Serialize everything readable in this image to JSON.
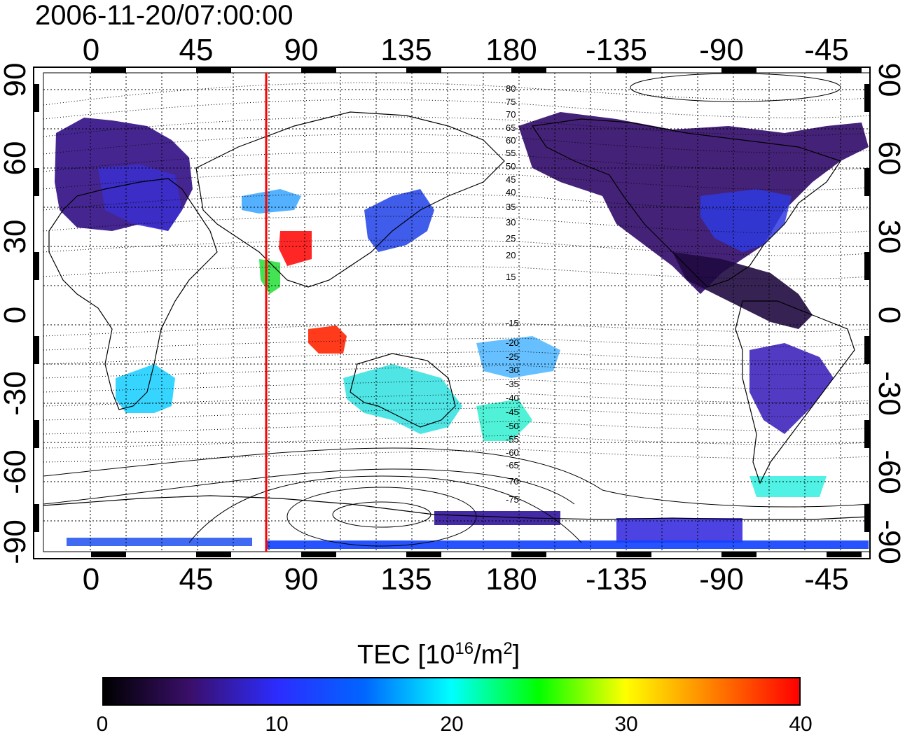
{
  "timestamp": "2006-11-20/07:00:00",
  "map": {
    "top_lon_labels": [
      "0",
      "45",
      "90",
      "135",
      "180",
      "-135",
      "-90",
      "-45"
    ],
    "bottom_lon_labels": [
      "0",
      "45",
      "90",
      "135",
      "180",
      "-135",
      "-90",
      "-45"
    ],
    "left_lat_labels": [
      "90",
      "60",
      "30",
      "0",
      "-30",
      "-60",
      "-90"
    ],
    "right_lat_labels": [
      "90",
      "60",
      "30",
      "0",
      "-30",
      "-60",
      "-90"
    ],
    "marker_line_color": "#ff0000",
    "contour_labels": [
      "80",
      "75",
      "70",
      "65",
      "60",
      "55",
      "50",
      "45",
      "40",
      "35",
      "30",
      "25",
      "20",
      "15",
      "-15",
      "-20",
      "-25",
      "-30",
      "-35",
      "-40",
      "-45",
      "-50",
      "-55",
      "-60",
      "-65",
      "-70",
      "-75"
    ]
  },
  "colorbar": {
    "title_main": "TEC  [10",
    "title_sup1": "16",
    "title_mid": "/m",
    "title_sup2": "2",
    "title_end": "]",
    "ticks": [
      "0",
      "10",
      "20",
      "30",
      "40"
    ],
    "colors": [
      "#000000",
      "#3a0f6b",
      "#2c2cff",
      "#0066ff",
      "#00ffff",
      "#00ff00",
      "#ffff00",
      "#ff8000",
      "#ff0000"
    ]
  },
  "regions": [
    {
      "name": "north-america",
      "color": "#3a1a80"
    },
    {
      "name": "europe",
      "color": "#3b1f95"
    },
    {
      "name": "india",
      "color": "#ff0000"
    },
    {
      "name": "south-africa",
      "color": "#20d0ff"
    },
    {
      "name": "australia",
      "color": "#30e0e0"
    },
    {
      "name": "south-america",
      "color": "#4030c0"
    }
  ]
}
